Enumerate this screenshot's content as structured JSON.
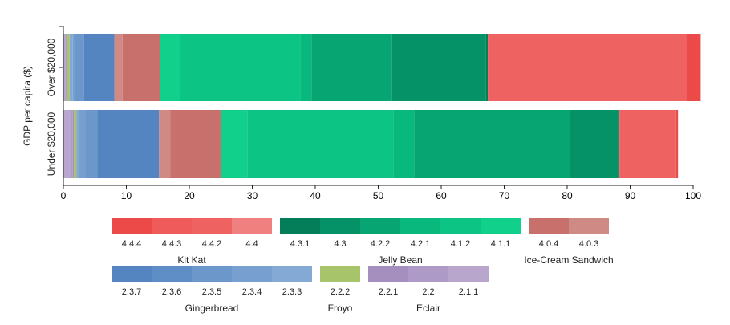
{
  "chart_data": {
    "type": "bar",
    "stacked": true,
    "orientation": "horizontal",
    "ylabel": "GDP per capita ($)",
    "xlim": [
      0,
      100
    ],
    "xticks": [
      0,
      10,
      20,
      30,
      40,
      50,
      60,
      70,
      80,
      90,
      100
    ],
    "categories": [
      "Over $20,000",
      "Under $20,000"
    ],
    "series": [
      {
        "name": "2.1.1",
        "color": "#b8a6cc",
        "values": [
          0.3,
          1.2
        ]
      },
      {
        "name": "2.2",
        "color": "#ad9ac6",
        "values": [
          0.2,
          0.3
        ]
      },
      {
        "name": "2.2.1",
        "color": "#a48fbf",
        "values": [
          0.0,
          0.2
        ]
      },
      {
        "name": "2.2.2",
        "color": "#a8c46a",
        "values": [
          0.5,
          0.4
        ]
      },
      {
        "name": "2.3.3",
        "color": "#84a9d4",
        "values": [
          0.5,
          0.4
        ]
      },
      {
        "name": "2.3.4",
        "color": "#77a0d0",
        "values": [
          0.3,
          1.0
        ]
      },
      {
        "name": "2.3.5",
        "color": "#6b97cb",
        "values": [
          1.5,
          1.9
        ]
      },
      {
        "name": "2.3.6",
        "color": "#5f8ec6",
        "values": [
          0.0,
          0.0
        ]
      },
      {
        "name": "2.3.7",
        "color": "#5585c1",
        "values": [
          4.8,
          9.8
        ]
      },
      {
        "name": "4.0.3",
        "color": "#d08a86",
        "values": [
          1.3,
          1.8
        ]
      },
      {
        "name": "4.0.4",
        "color": "#c8706c",
        "values": [
          6.0,
          8.0
        ]
      },
      {
        "name": "4.1.1",
        "color": "#10d08c",
        "values": [
          3.1,
          4.2
        ]
      },
      {
        "name": "4.1.2",
        "color": "#0cc585",
        "values": [
          19.2,
          23.2
        ]
      },
      {
        "name": "4.2.1",
        "color": "#08b87c",
        "values": [
          1.7,
          3.3
        ]
      },
      {
        "name": "4.2.2",
        "color": "#06a571",
        "values": [
          12.8,
          24.8
        ]
      },
      {
        "name": "4.3",
        "color": "#059266",
        "values": [
          14.9,
          7.7
        ]
      },
      {
        "name": "4.3.1",
        "color": "#047e58",
        "values": [
          0.3,
          0.1
        ]
      },
      {
        "name": "4.4",
        "color": "#f08080",
        "values": [
          0.0,
          0.0
        ]
      },
      {
        "name": "4.4.2",
        "color": "#ef6262",
        "values": [
          31.5,
          9.0
        ]
      },
      {
        "name": "4.4.3",
        "color": "#ef5a5a",
        "values": [
          0.0,
          0.0
        ]
      },
      {
        "name": "4.4.4",
        "color": "#ec4949",
        "values": [
          2.3,
          0.3
        ]
      }
    ],
    "legend": {
      "position": "bottom",
      "groups": [
        {
          "name": "Kit Kat",
          "items": [
            "4.4.4",
            "4.4.3",
            "4.4.2",
            "4.4"
          ]
        },
        {
          "name": "Jelly Bean",
          "items": [
            "4.3.1",
            "4.3",
            "4.2.2",
            "4.2.1",
            "4.1.2",
            "4.1.1"
          ]
        },
        {
          "name": "Ice-Cream Sandwich",
          "items": [
            "4.0.4",
            "4.0.3"
          ]
        },
        {
          "name": "Gingerbread",
          "items": [
            "2.3.7",
            "2.3.6",
            "2.3.5",
            "2.3.4",
            "2.3.3"
          ]
        },
        {
          "name": "Froyo",
          "items": [
            "2.2.2"
          ]
        },
        {
          "name": "Eclair",
          "items": [
            "2.2.1",
            "2.2",
            "2.1.1"
          ]
        }
      ]
    }
  }
}
